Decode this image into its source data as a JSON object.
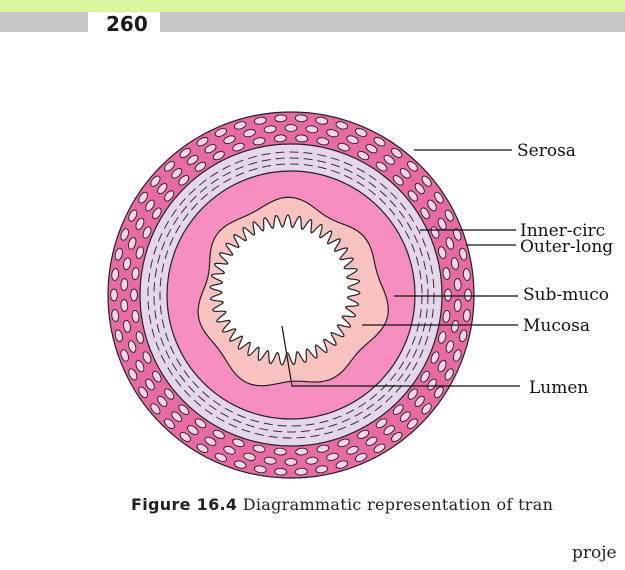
{
  "page": {
    "number": "260"
  },
  "diagram": {
    "labels": {
      "serosa": "Serosa",
      "inner_circular": "Inner-circ",
      "outer_longitudinal": "Outer-long",
      "submucosa": "Sub-muco",
      "mucosa": "Mucosa",
      "lumen": "Lumen"
    },
    "colors": {
      "serosa_layer": "#e86aa3",
      "muscle_layer": "#e4d7ec",
      "submucosa_layer": "#f68fc0",
      "mucosa_layer": "#f8c3c0",
      "lumen": "#ffffff"
    }
  },
  "caption": {
    "figure_label": "Figure 16.4",
    "text": " Diagrammatic representation of tran"
  },
  "trailing_text": "proje"
}
